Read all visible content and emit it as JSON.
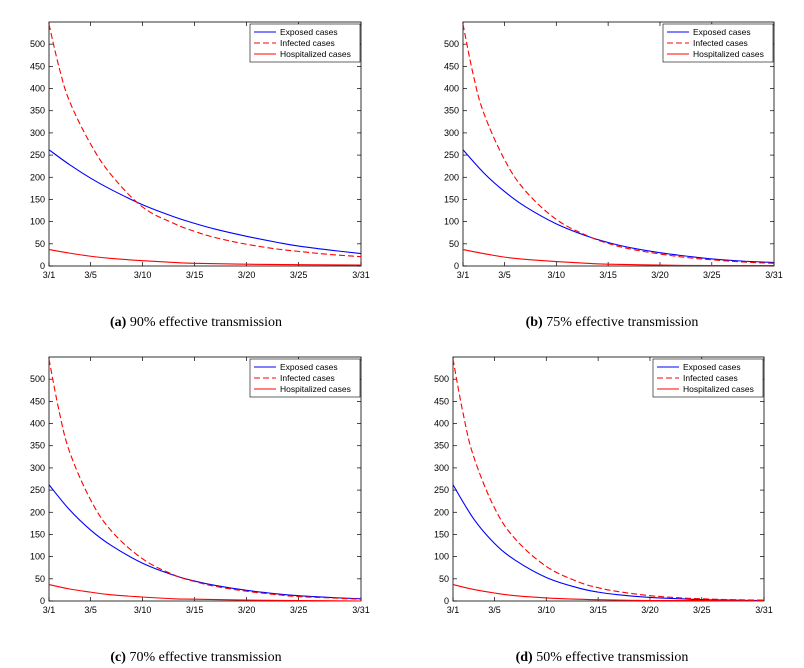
{
  "chart_data": [
    {
      "type": "line",
      "caption_letter": "(a)",
      "caption_text": "90% effective transmission",
      "x_ticks": [
        "3/1",
        "3/5",
        "3/10",
        "3/15",
        "3/20",
        "3/25",
        "3/31"
      ],
      "x_tick_days": [
        1,
        5,
        10,
        15,
        20,
        25,
        31
      ],
      "xlim": [
        1,
        31
      ],
      "ylim": [
        0,
        550
      ],
      "y_ticks": [
        0,
        50,
        100,
        150,
        200,
        250,
        300,
        350,
        400,
        450,
        500
      ],
      "legend": [
        "Exposed cases",
        "Infected cases",
        "Hospitalized cases"
      ],
      "legend_position": "top-right",
      "series": [
        {
          "name": "Exposed cases",
          "color": "#0000ff",
          "style": "solid",
          "x": [
            1,
            3,
            5,
            7,
            10,
            13,
            15,
            17,
            20,
            23,
            25,
            28,
            31
          ],
          "values": [
            262,
            228,
            198,
            172,
            138,
            111,
            96,
            83,
            67,
            53,
            45,
            36,
            28
          ]
        },
        {
          "name": "Infected cases",
          "color": "#ff0000",
          "style": "dashed",
          "x": [
            1,
            2,
            3,
            5,
            7,
            10,
            13,
            15,
            17,
            20,
            23,
            25,
            28,
            31
          ],
          "values": [
            545,
            445,
            370,
            275,
            205,
            133,
            96,
            78,
            64,
            49,
            38,
            33,
            26,
            21
          ]
        },
        {
          "name": "Hospitalized cases",
          "color": "#ff0000",
          "style": "solid",
          "x": [
            1,
            3,
            5,
            7,
            10,
            13,
            15,
            20,
            25,
            31
          ],
          "values": [
            37,
            29,
            22,
            17,
            12,
            8,
            6,
            4,
            3,
            2
          ]
        }
      ]
    },
    {
      "type": "line",
      "caption_letter": "(b)",
      "caption_text": "75% effective transmission",
      "x_ticks": [
        "3/1",
        "3/5",
        "3/10",
        "3/15",
        "3/20",
        "3/25",
        "3/31"
      ],
      "x_tick_days": [
        1,
        5,
        10,
        15,
        20,
        25,
        31
      ],
      "xlim": [
        1,
        31
      ],
      "ylim": [
        0,
        550
      ],
      "y_ticks": [
        0,
        50,
        100,
        150,
        200,
        250,
        300,
        350,
        400,
        450,
        500
      ],
      "legend": [
        "Exposed cases",
        "Infected cases",
        "Hospitalized cases"
      ],
      "legend_position": "top-right",
      "series": [
        {
          "name": "Exposed cases",
          "color": "#0000ff",
          "style": "solid",
          "x": [
            1,
            3,
            5,
            7,
            10,
            13,
            15,
            17,
            20,
            23,
            25,
            28,
            31
          ],
          "values": [
            262,
            210,
            168,
            134,
            95,
            67,
            53,
            42,
            30,
            21,
            16,
            11,
            8
          ]
        },
        {
          "name": "Infected cases",
          "color": "#ff0000",
          "style": "dashed",
          "x": [
            1,
            2,
            3,
            5,
            7,
            10,
            13,
            15,
            17,
            20,
            23,
            25,
            28,
            31
          ],
          "values": [
            545,
            430,
            345,
            240,
            170,
            105,
            68,
            51,
            39,
            27,
            18,
            14,
            9,
            6
          ]
        },
        {
          "name": "Hospitalized cases",
          "color": "#ff0000",
          "style": "solid",
          "x": [
            1,
            3,
            5,
            7,
            10,
            13,
            15,
            20,
            25,
            31
          ],
          "values": [
            37,
            28,
            20,
            15,
            10,
            6,
            4,
            2,
            1,
            1
          ]
        }
      ]
    },
    {
      "type": "line",
      "caption_letter": "(c)",
      "caption_text": "70% effective transmission",
      "x_ticks": [
        "3/1",
        "3/5",
        "3/10",
        "3/15",
        "3/20",
        "3/25",
        "3/31"
      ],
      "x_tick_days": [
        1,
        5,
        10,
        15,
        20,
        25,
        31
      ],
      "xlim": [
        1,
        31
      ],
      "ylim": [
        0,
        550
      ],
      "y_ticks": [
        0,
        50,
        100,
        150,
        200,
        250,
        300,
        350,
        400,
        450,
        500
      ],
      "legend": [
        "Exposed cases",
        "Infected cases",
        "Hospitalized cases"
      ],
      "legend_position": "top-right",
      "series": [
        {
          "name": "Exposed cases",
          "color": "#0000ff",
          "style": "solid",
          "x": [
            1,
            3,
            5,
            7,
            10,
            13,
            15,
            17,
            20,
            23,
            25,
            28,
            31
          ],
          "values": [
            262,
            205,
            160,
            125,
            85,
            58,
            45,
            35,
            24,
            16,
            12,
            8,
            5
          ]
        },
        {
          "name": "Infected cases",
          "color": "#ff0000",
          "style": "dashed",
          "x": [
            1,
            2,
            3,
            5,
            7,
            10,
            13,
            15,
            17,
            20,
            23,
            25,
            28,
            31
          ],
          "values": [
            545,
            425,
            335,
            228,
            158,
            95,
            59,
            44,
            33,
            22,
            14,
            10,
            7,
            4
          ]
        },
        {
          "name": "Hospitalized cases",
          "color": "#ff0000",
          "style": "solid",
          "x": [
            1,
            3,
            5,
            7,
            10,
            13,
            15,
            20,
            25,
            31
          ],
          "values": [
            37,
            27,
            20,
            14,
            9,
            5,
            4,
            2,
            1,
            0
          ]
        }
      ]
    },
    {
      "type": "line",
      "caption_letter": "(d)",
      "caption_text": "50% effective transmission",
      "x_ticks": [
        "3/1",
        "3/5",
        "3/10",
        "3/15",
        "3/20",
        "3/25",
        "3/31"
      ],
      "x_tick_days": [
        1,
        5,
        10,
        15,
        20,
        25,
        31
      ],
      "xlim": [
        1,
        31
      ],
      "ylim": [
        0,
        550
      ],
      "y_ticks": [
        0,
        50,
        100,
        150,
        200,
        250,
        300,
        350,
        400,
        450,
        500
      ],
      "legend": [
        "Exposed cases",
        "Infected cases",
        "Hospitalized cases"
      ],
      "legend_position": "top-right",
      "series": [
        {
          "name": "Exposed cases",
          "color": "#0000ff",
          "style": "solid",
          "x": [
            1,
            3,
            5,
            7,
            10,
            13,
            15,
            17,
            20,
            23,
            25,
            28,
            31
          ],
          "values": [
            262,
            185,
            130,
            92,
            53,
            30,
            20,
            14,
            8,
            5,
            3,
            2,
            1
          ]
        },
        {
          "name": "Infected cases",
          "color": "#ff0000",
          "style": "dashed",
          "x": [
            1,
            2,
            3,
            5,
            7,
            10,
            13,
            15,
            17,
            20,
            23,
            25,
            28,
            31
          ],
          "values": [
            545,
            420,
            325,
            210,
            140,
            78,
            44,
            30,
            21,
            12,
            7,
            5,
            3,
            2
          ]
        },
        {
          "name": "Hospitalized cases",
          "color": "#ff0000",
          "style": "solid",
          "x": [
            1,
            3,
            5,
            7,
            10,
            13,
            15,
            20,
            25,
            31
          ],
          "values": [
            37,
            26,
            18,
            12,
            7,
            4,
            3,
            1,
            1,
            0
          ]
        }
      ]
    }
  ]
}
